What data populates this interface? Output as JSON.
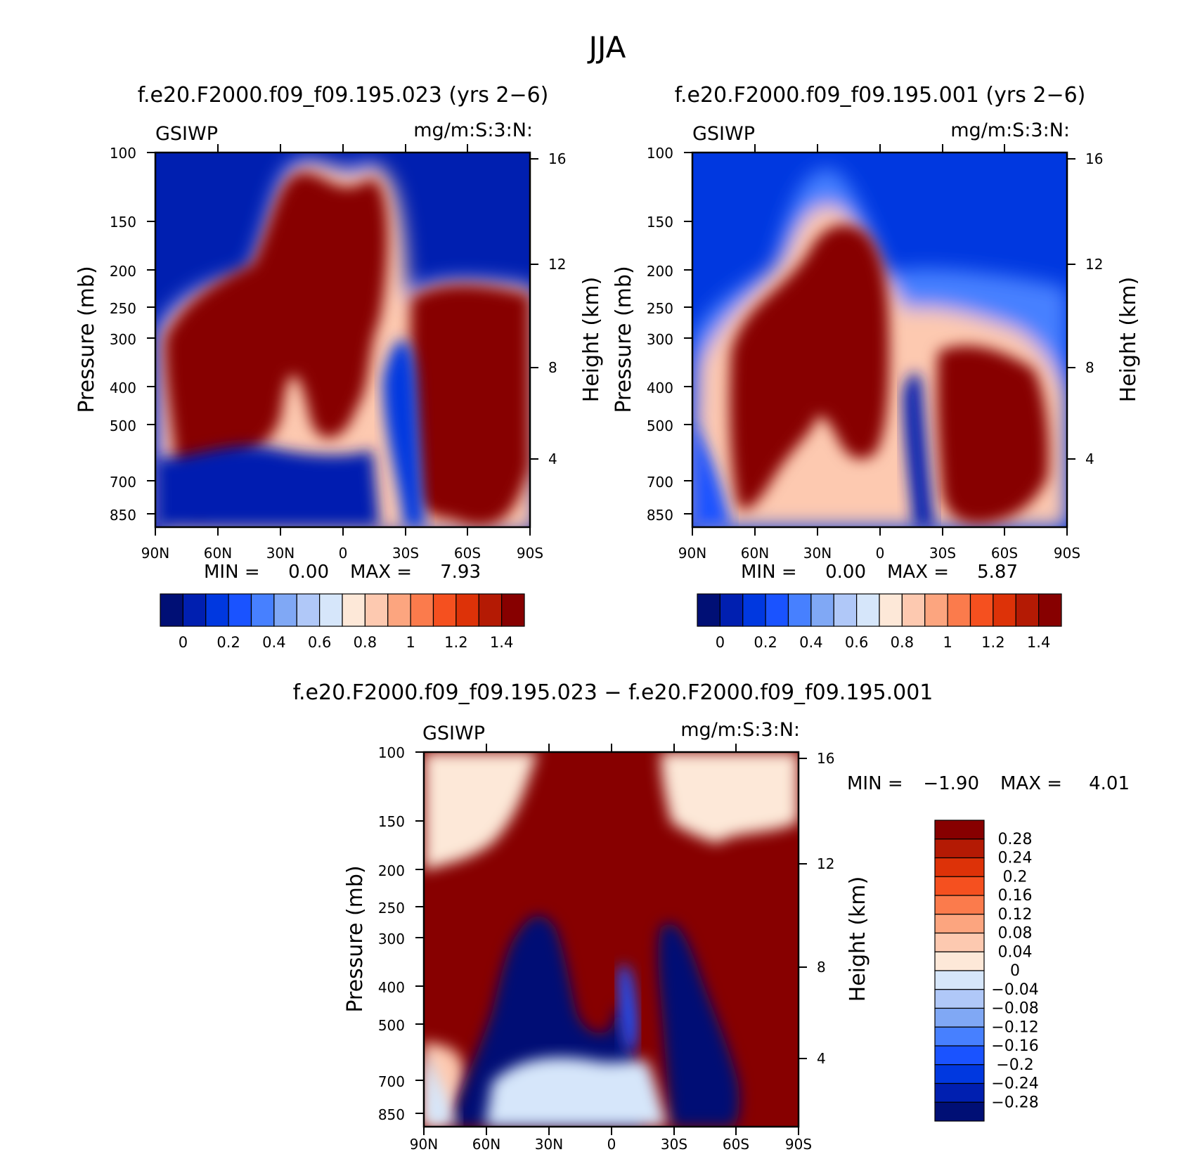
{
  "figure_title": "JJA",
  "colors": {
    "absolute_scale": [
      "#000f75",
      "#001fb0",
      "#0038e0",
      "#1a53ff",
      "#4780ff",
      "#80a8f5",
      "#b0c8f8",
      "#d6e6fa",
      "#fde8d8",
      "#fdc9b0",
      "#fca57f",
      "#fb7b4c",
      "#f5501f",
      "#dd3208",
      "#b41a04",
      "#870000"
    ],
    "difference_scale": [
      "#000f75",
      "#001fb0",
      "#0038e0",
      "#1a53ff",
      "#4780ff",
      "#80a8f5",
      "#b0c8f8",
      "#d6e6fa",
      "#fde8d8",
      "#fdc9b0",
      "#fca57f",
      "#fb7b4c",
      "#f5501f",
      "#dd3208",
      "#b41a04",
      "#870000"
    ]
  },
  "chart_data": [
    {
      "type": "heatmap",
      "id": "top-left",
      "title": "f.e20.F2000.f09_f09.195.023 (yrs 2−6)",
      "variable": "GSIWP",
      "units": "mg/m:S:3:N:",
      "xlabel": "",
      "ylabel": "Pressure (mb)",
      "ylabel_right": "Height (km)",
      "x_ticks": [
        "90N",
        "60N",
        "30N",
        "0",
        "30S",
        "60S",
        "90S"
      ],
      "y_ticks": [
        "100",
        "150",
        "200",
        "250",
        "300",
        "400",
        "500",
        "700",
        "850"
      ],
      "y_ticks_right": [
        "16",
        "12",
        "8",
        "4"
      ],
      "min_label": "MIN =",
      "min_value": "0.00",
      "max_label": "MAX =",
      "max_value": "7.93",
      "colorbar_labels": [
        "0",
        "0.2",
        "0.4",
        "0.6",
        "0.8",
        "1",
        "1.2",
        "1.4"
      ],
      "contour_levels": [
        0,
        0.1,
        0.2,
        0.3,
        0.4,
        0.5,
        0.6,
        0.7,
        0.8,
        0.9,
        1.0,
        1.1,
        1.2,
        1.3,
        1.4
      ]
    },
    {
      "type": "heatmap",
      "id": "top-right",
      "title": "f.e20.F2000.f09_f09.195.001 (yrs 2−6)",
      "variable": "GSIWP",
      "units": "mg/m:S:3:N:",
      "xlabel": "",
      "ylabel": "Pressure (mb)",
      "ylabel_right": "Height (km)",
      "x_ticks": [
        "90N",
        "60N",
        "30N",
        "0",
        "30S",
        "60S",
        "90S"
      ],
      "y_ticks": [
        "100",
        "150",
        "200",
        "250",
        "300",
        "400",
        "500",
        "700",
        "850"
      ],
      "y_ticks_right": [
        "16",
        "12",
        "8",
        "4"
      ],
      "min_label": "MIN =",
      "min_value": "0.00",
      "max_label": "MAX =",
      "max_value": "5.87",
      "colorbar_labels": [
        "0",
        "0.2",
        "0.4",
        "0.6",
        "0.8",
        "1",
        "1.2",
        "1.4"
      ],
      "contour_levels": [
        0,
        0.1,
        0.2,
        0.3,
        0.4,
        0.5,
        0.6,
        0.7,
        0.8,
        0.9,
        1.0,
        1.1,
        1.2,
        1.3,
        1.4
      ]
    },
    {
      "type": "heatmap",
      "id": "difference",
      "title": "f.e20.F2000.f09_f09.195.023 − f.e20.F2000.f09_f09.195.001",
      "variable": "GSIWP",
      "units": "mg/m:S:3:N:",
      "xlabel": "",
      "ylabel": "Pressure (mb)",
      "ylabel_right": "Height (km)",
      "x_ticks": [
        "90N",
        "60N",
        "30N",
        "0",
        "30S",
        "60S",
        "90S"
      ],
      "y_ticks": [
        "100",
        "150",
        "200",
        "250",
        "300",
        "400",
        "500",
        "700",
        "850"
      ],
      "y_ticks_right": [
        "16",
        "12",
        "8",
        "4"
      ],
      "min_label": "MIN =",
      "min_value": "−1.90",
      "max_label": "MAX =",
      "max_value": "4.01",
      "colorbar_labels": [
        "0.28",
        "0.24",
        "0.2",
        "0.16",
        "0.12",
        "0.08",
        "0.04",
        "0",
        "−0.04",
        "−0.08",
        "−0.12",
        "−0.16",
        "−0.2",
        "−0.24",
        "−0.28"
      ],
      "contour_levels": [
        -0.28,
        -0.24,
        -0.2,
        -0.16,
        -0.12,
        -0.08,
        -0.04,
        0,
        0.04,
        0.08,
        0.12,
        0.16,
        0.2,
        0.24,
        0.28
      ]
    }
  ]
}
